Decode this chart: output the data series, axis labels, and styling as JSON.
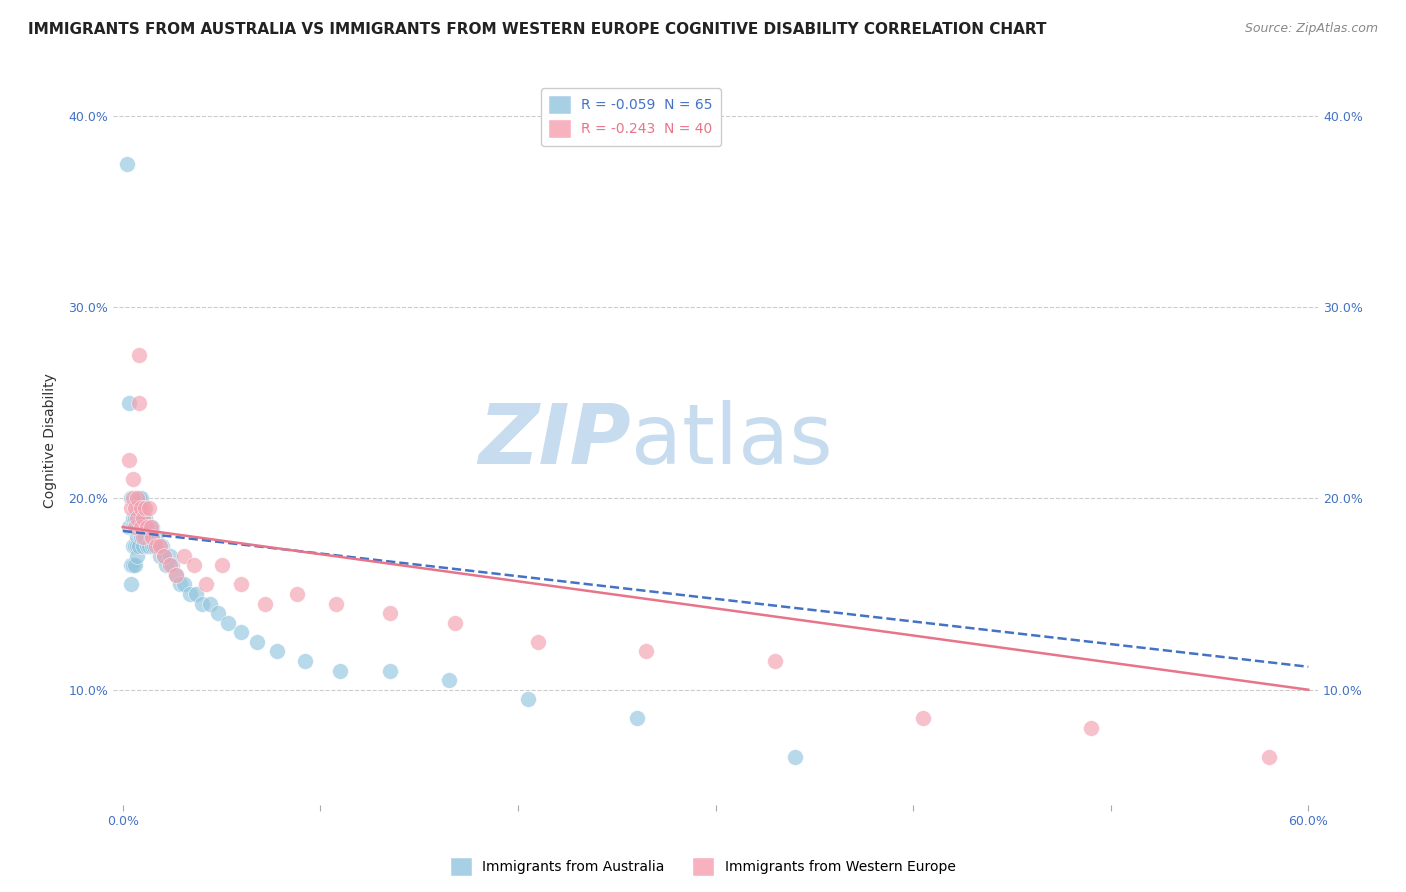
{
  "title": "IMMIGRANTS FROM AUSTRALIA VS IMMIGRANTS FROM WESTERN EUROPE COGNITIVE DISABILITY CORRELATION CHART",
  "source": "Source: ZipAtlas.com",
  "ylabel": "Cognitive Disability",
  "xlabel": "",
  "xlim": [
    -0.005,
    0.605
  ],
  "ylim": [
    0.04,
    0.42
  ],
  "y_ticks": [
    0.1,
    0.2,
    0.3,
    0.4
  ],
  "y_tick_labels": [
    "10.0%",
    "20.0%",
    "30.0%",
    "40.0%"
  ],
  "x_ticks": [
    0.0,
    0.1,
    0.2,
    0.3,
    0.4,
    0.5,
    0.6
  ],
  "x_tick_labels": [
    "0.0%",
    "",
    "",
    "",
    "",
    "",
    "60.0%"
  ],
  "series_australia": {
    "color": "#92C5DE",
    "R": -0.059,
    "N": 65,
    "x": [
      0.002,
      0.003,
      0.003,
      0.004,
      0.004,
      0.004,
      0.005,
      0.005,
      0.005,
      0.005,
      0.006,
      0.006,
      0.006,
      0.006,
      0.007,
      0.007,
      0.007,
      0.007,
      0.008,
      0.008,
      0.008,
      0.008,
      0.009,
      0.009,
      0.009,
      0.01,
      0.01,
      0.01,
      0.011,
      0.011,
      0.012,
      0.012,
      0.013,
      0.013,
      0.014,
      0.015,
      0.015,
      0.016,
      0.017,
      0.018,
      0.019,
      0.02,
      0.021,
      0.022,
      0.024,
      0.025,
      0.027,
      0.029,
      0.031,
      0.034,
      0.037,
      0.04,
      0.044,
      0.048,
      0.053,
      0.06,
      0.068,
      0.078,
      0.092,
      0.11,
      0.135,
      0.165,
      0.205,
      0.26,
      0.34
    ],
    "y": [
      0.375,
      0.25,
      0.185,
      0.155,
      0.165,
      0.2,
      0.19,
      0.185,
      0.175,
      0.165,
      0.19,
      0.185,
      0.175,
      0.165,
      0.185,
      0.18,
      0.175,
      0.17,
      0.2,
      0.195,
      0.185,
      0.175,
      0.2,
      0.19,
      0.18,
      0.195,
      0.185,
      0.175,
      0.19,
      0.18,
      0.185,
      0.175,
      0.185,
      0.175,
      0.18,
      0.185,
      0.175,
      0.175,
      0.18,
      0.175,
      0.17,
      0.175,
      0.17,
      0.165,
      0.17,
      0.165,
      0.16,
      0.155,
      0.155,
      0.15,
      0.15,
      0.145,
      0.145,
      0.14,
      0.135,
      0.13,
      0.125,
      0.12,
      0.115,
      0.11,
      0.11,
      0.105,
      0.095,
      0.085,
      0.065
    ]
  },
  "series_western_europe": {
    "color": "#F4A0B0",
    "R": -0.243,
    "N": 40,
    "x": [
      0.003,
      0.004,
      0.005,
      0.005,
      0.006,
      0.006,
      0.007,
      0.007,
      0.008,
      0.008,
      0.009,
      0.009,
      0.01,
      0.01,
      0.011,
      0.012,
      0.013,
      0.014,
      0.015,
      0.017,
      0.019,
      0.021,
      0.024,
      0.027,
      0.031,
      0.036,
      0.042,
      0.05,
      0.06,
      0.072,
      0.088,
      0.108,
      0.135,
      0.168,
      0.21,
      0.265,
      0.33,
      0.405,
      0.49,
      0.58
    ],
    "y": [
      0.22,
      0.195,
      0.21,
      0.2,
      0.195,
      0.185,
      0.2,
      0.19,
      0.25,
      0.275,
      0.195,
      0.185,
      0.19,
      0.18,
      0.195,
      0.185,
      0.195,
      0.185,
      0.18,
      0.175,
      0.175,
      0.17,
      0.165,
      0.16,
      0.17,
      0.165,
      0.155,
      0.165,
      0.155,
      0.145,
      0.15,
      0.145,
      0.14,
      0.135,
      0.125,
      0.12,
      0.115,
      0.085,
      0.08,
      0.065
    ]
  },
  "trendline_australia": {
    "color": "#4472C4",
    "linestyle": "--",
    "x_start": 0.0,
    "x_end": 0.6,
    "y_start": 0.183,
    "y_end": 0.112
  },
  "trendline_western_europe": {
    "color": "#E8748A",
    "linestyle": "-",
    "x_start": 0.0,
    "x_end": 0.6,
    "y_start": 0.185,
    "y_end": 0.1
  },
  "watermark": "ZIPatlas",
  "watermark_color": "#C8DCF0",
  "background_color": "#FFFFFF",
  "grid_color": "#CCCCCC",
  "title_fontsize": 11,
  "axis_label_fontsize": 10,
  "tick_fontsize": 9,
  "legend_fontsize": 10,
  "source_fontsize": 9
}
